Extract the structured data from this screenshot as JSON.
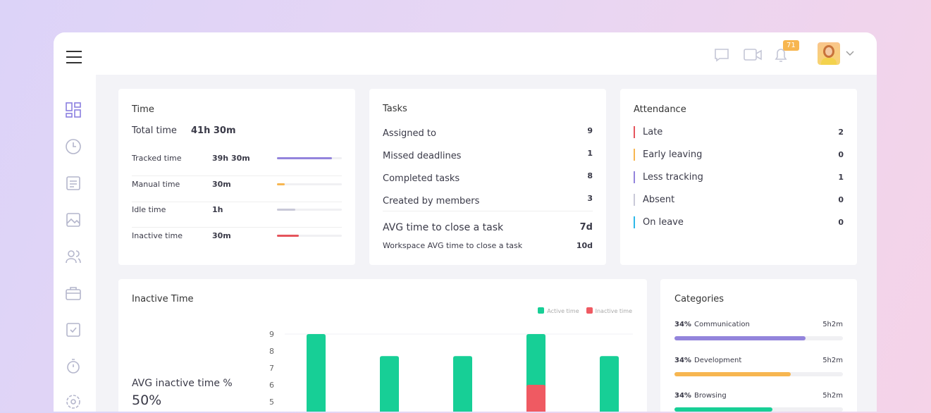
{
  "header": {
    "notifications": "71"
  },
  "time": {
    "title": "Time",
    "total_label": "Total time",
    "total_value": "41h 30m",
    "rows": [
      {
        "label": "Tracked time",
        "value": "39h 30m",
        "fill": 0.85,
        "color": "#9384dc"
      },
      {
        "label": "Manual time",
        "value": "30m",
        "fill": 0.12,
        "color": "#f7b650"
      },
      {
        "label": "Idle time",
        "value": "1h",
        "fill": 0.28,
        "color": "#c9c9d8"
      },
      {
        "label": "Inactive time",
        "value": "30m",
        "fill": 0.34,
        "color": "#e5545c"
      }
    ]
  },
  "tasks": {
    "title": "Tasks",
    "rows": [
      {
        "label": "Assigned to",
        "value": "9"
      },
      {
        "label": "Missed deadlines",
        "value": "1"
      },
      {
        "label": "Completed tasks",
        "value": "8"
      },
      {
        "label": "Created by members",
        "value": "3"
      }
    ],
    "avg_label": "AVG time to close a task",
    "avg_value": "7d",
    "ws_label": "Workspace AVG time to close a task",
    "ws_value": "10d"
  },
  "attendance": {
    "title": "Attendance",
    "rows": [
      {
        "label": "Late",
        "value": "2",
        "color": "#e5545c"
      },
      {
        "label": "Early leaving",
        "value": "0",
        "color": "#f7b650"
      },
      {
        "label": "Less tracking",
        "value": "1",
        "color": "#9384dc"
      },
      {
        "label": "Absent",
        "value": "0",
        "color": "#c9c9d8"
      },
      {
        "label": "On leave",
        "value": "0",
        "color": "#2db8e8"
      }
    ]
  },
  "inactive": {
    "title": "Inactive Time",
    "avg_label": "AVG inactive time %",
    "avg_value": "50%"
  },
  "chart_data": {
    "type": "bar",
    "stacked": false,
    "yticks": [
      9,
      8,
      7,
      6,
      5
    ],
    "series": [
      {
        "name": "Active time",
        "color": "#17cf96",
        "values": [
          9,
          7.7,
          7.7,
          9,
          7.7
        ]
      },
      {
        "name": "Inactive time",
        "color": "#ef5a62",
        "values": [
          0,
          0,
          0,
          6,
          0
        ]
      }
    ],
    "legend": "top-right"
  },
  "categories": {
    "title": "Categories",
    "items": [
      {
        "pct": "34%",
        "label": "Communication",
        "value": "5h2m",
        "fill": 0.78,
        "color": "#9384dc"
      },
      {
        "pct": "34%",
        "label": "Development",
        "value": "5h2m",
        "fill": 0.69,
        "color": "#f7b650"
      },
      {
        "pct": "34%",
        "label": "Browsing",
        "value": "5h2m",
        "fill": 0.58,
        "color": "#17cf96"
      }
    ]
  }
}
